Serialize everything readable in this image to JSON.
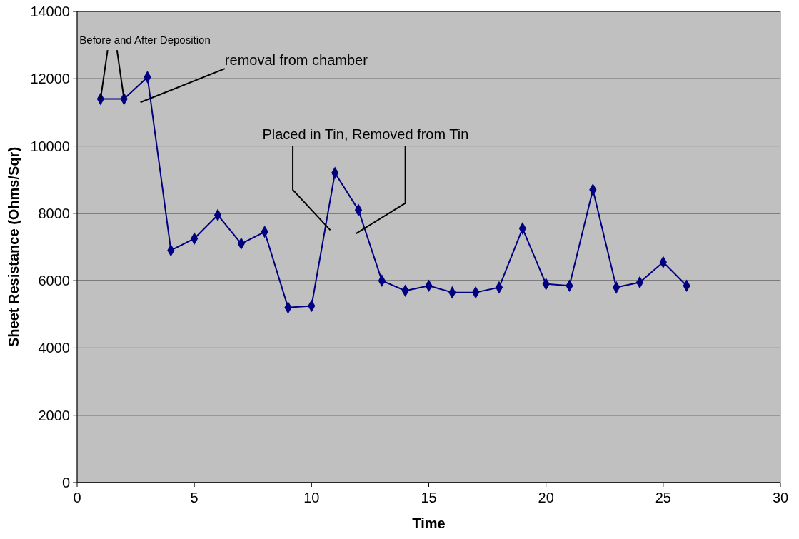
{
  "chart_data": {
    "type": "line",
    "xlabel": "Time",
    "ylabel": "Sheet Resistance (Ohms/Sqr)",
    "x": [
      1,
      2,
      3,
      4,
      5,
      6,
      7,
      8,
      9,
      10,
      11,
      12,
      13,
      14,
      15,
      16,
      17,
      18,
      19,
      20,
      21,
      22,
      23,
      24,
      25,
      26
    ],
    "series": [
      {
        "color": "#000080",
        "values": [
          11400,
          11400,
          12050,
          6900,
          7250,
          7950,
          7100,
          7450,
          5200,
          5250,
          9200,
          8100,
          6000,
          5700,
          5850,
          5650,
          5650,
          5800,
          7550,
          5900,
          5850,
          8700,
          5800,
          5950,
          6550,
          5850
        ]
      }
    ],
    "xlim": [
      0,
      30
    ],
    "xticks": [
      0,
      5,
      10,
      15,
      20,
      25,
      30
    ],
    "ylim": [
      0,
      14000
    ],
    "yticks": [
      0,
      2000,
      4000,
      6000,
      8000,
      10000,
      12000,
      14000
    ],
    "grid": "y",
    "marker": "diamond",
    "line_style": "solid",
    "annotations": [
      {
        "text": "Before and After Deposition",
        "x": 1,
        "y": 11400
      },
      "removal from chamber",
      "Placed in Tin, Removed from Tin"
    ]
  }
}
